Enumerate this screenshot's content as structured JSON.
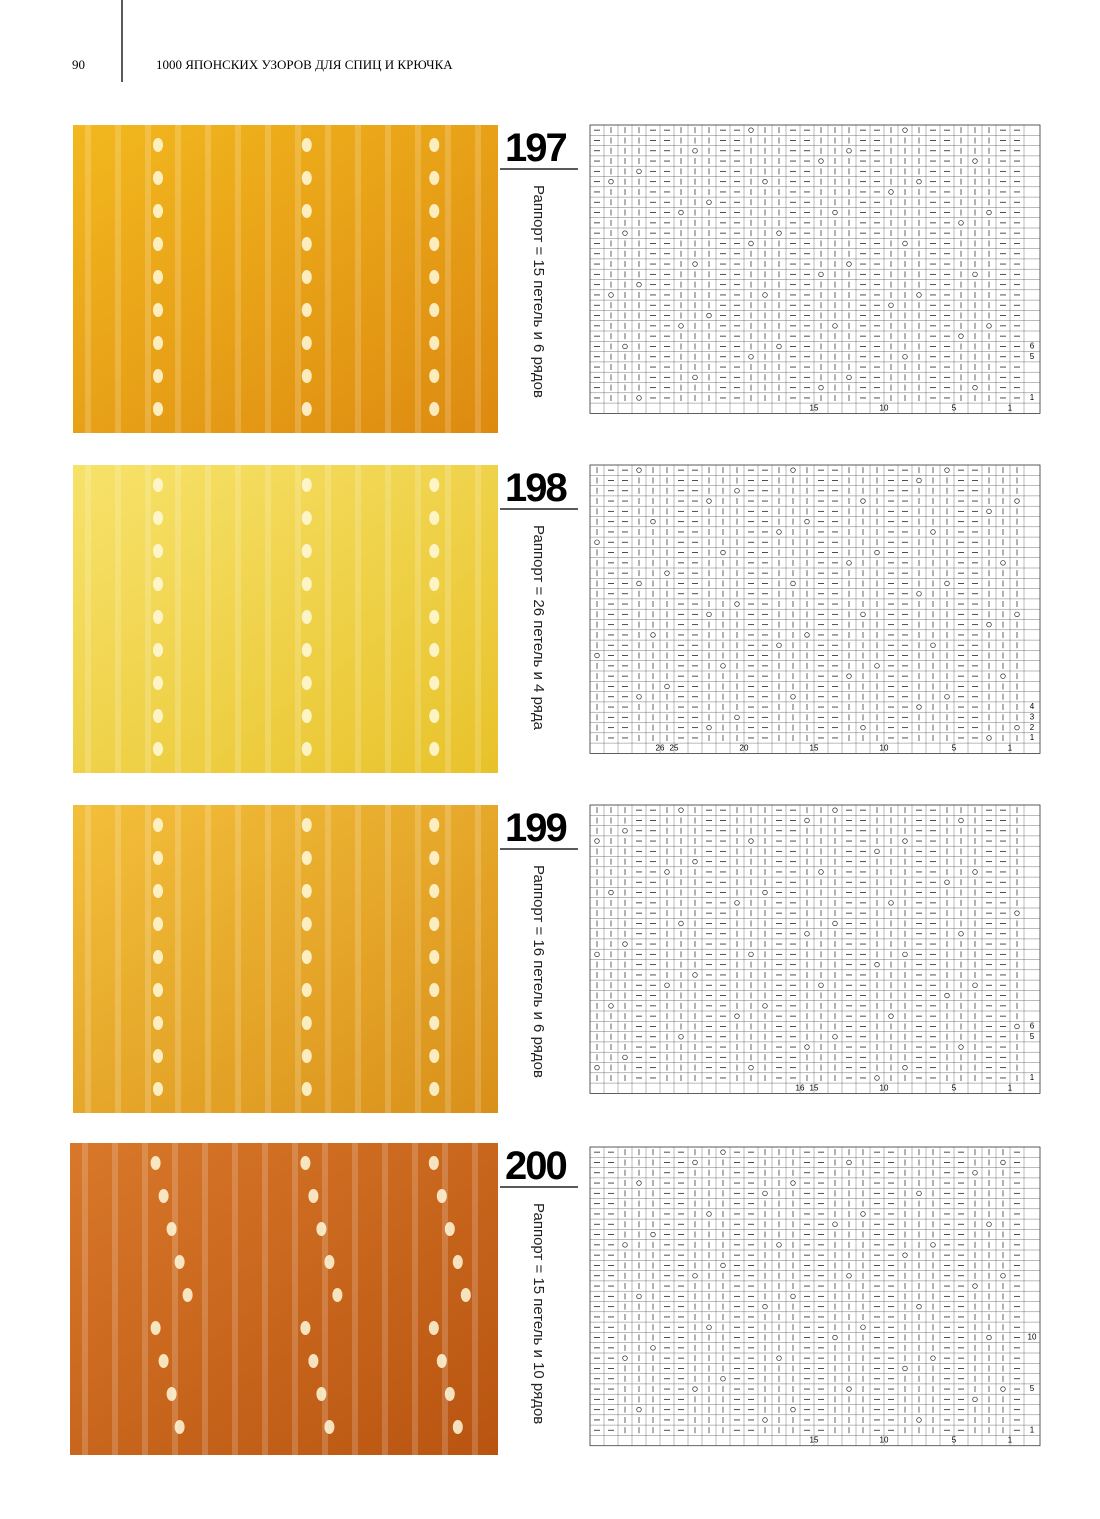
{
  "header": {
    "page_number": "90",
    "title": "1000 ЯПОНСКИХ УЗОРОВ ДЛЯ СПИЦ И КРЮЧКА"
  },
  "patterns": [
    {
      "number": "197",
      "caption": "Раппорт = 15 петель и 6 рядов",
      "column_labels": [
        "15",
        "10",
        "5",
        "1"
      ],
      "row_labels": [
        "6",
        "5",
        "1"
      ]
    },
    {
      "number": "198",
      "caption": "Раппорт = 26 петель и 4 ряда",
      "column_labels": [
        "26",
        "25",
        "20",
        "15",
        "10",
        "5",
        "1"
      ],
      "row_labels": [
        "4",
        "3",
        "2",
        "1"
      ]
    },
    {
      "number": "199",
      "caption": "Раппорт = 16 петель и 6 рядов",
      "column_labels": [
        "16",
        "15",
        "10",
        "5",
        "1"
      ],
      "row_labels": [
        "6",
        "5",
        "1"
      ]
    },
    {
      "number": "200",
      "caption": "Раппорт = 15 петель и 10 рядов",
      "column_labels": [
        "15",
        "10",
        "5",
        "1"
      ],
      "row_labels": [
        "10",
        "5",
        "1"
      ]
    }
  ]
}
